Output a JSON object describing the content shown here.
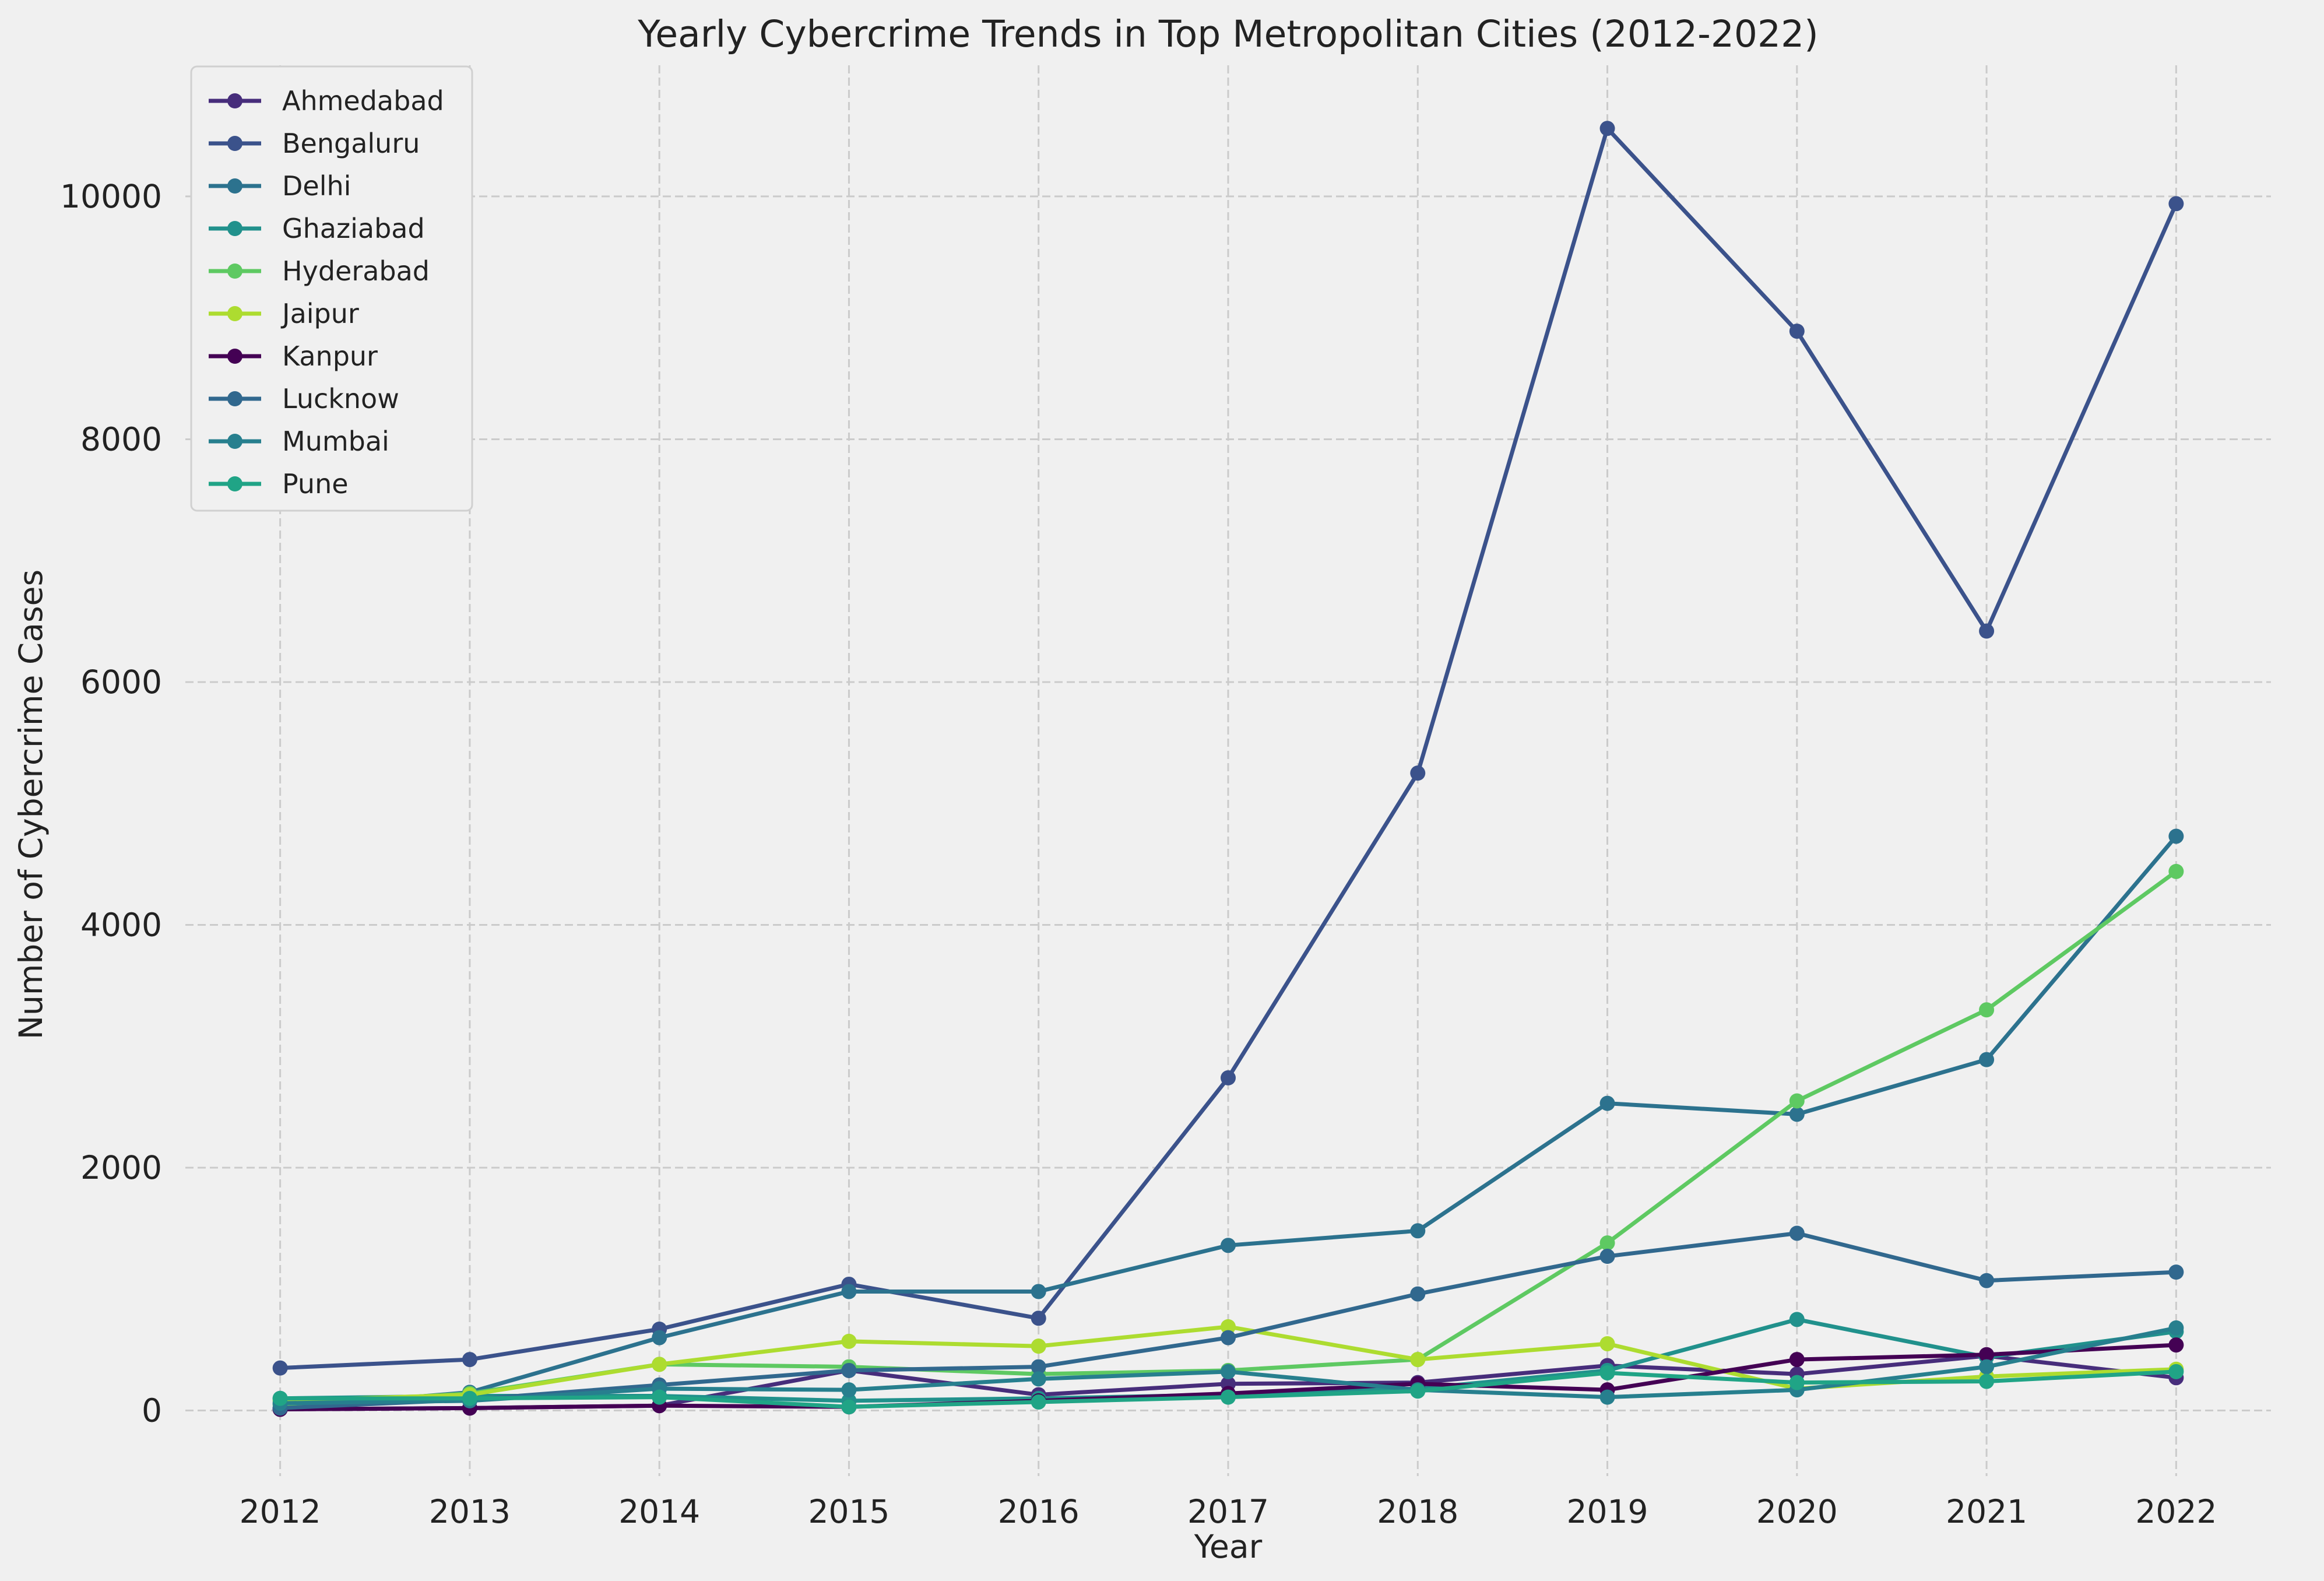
{
  "chart_data": {
    "type": "line",
    "title": "Yearly Cybercrime Trends in Top Metropolitan Cities (2012-2022)",
    "xlabel": "Year",
    "ylabel": "Number of Cybercrime Cases",
    "x": [
      2012,
      2013,
      2014,
      2015,
      2016,
      2017,
      2018,
      2019,
      2020,
      2021,
      2022
    ],
    "xlim": [
      2011.5,
      2022.5
    ],
    "ylim": [
      -540,
      11080
    ],
    "yticks": [
      0,
      2000,
      4000,
      6000,
      8000,
      10000
    ],
    "grid": true,
    "legend_position": "upper-left",
    "series": [
      {
        "name": "Ahmedabad",
        "color": "#472d7b",
        "values": [
          10,
          20,
          40,
          330,
          130,
          220,
          230,
          370,
          300,
          450,
          270
        ]
      },
      {
        "name": "Bengaluru",
        "color": "#3b528b",
        "values": [
          350,
          420,
          670,
          1040,
          760,
          2740,
          5250,
          10560,
          8890,
          6420,
          9940
        ]
      },
      {
        "name": "Delhi",
        "color": "#2c728e",
        "values": [
          20,
          150,
          600,
          980,
          980,
          1360,
          1480,
          2530,
          2440,
          2890,
          4730
        ]
      },
      {
        "name": "Ghaziabad",
        "color": "#21918c",
        "values": [
          100,
          120,
          120,
          80,
          100,
          130,
          180,
          330,
          750,
          440,
          650
        ]
      },
      {
        "name": "Hyderabad",
        "color": "#5ec962",
        "values": [
          50,
          140,
          380,
          360,
          300,
          330,
          420,
          1380,
          2550,
          3300,
          4440
        ]
      },
      {
        "name": "Jaipur",
        "color": "#addc30",
        "values": [
          80,
          130,
          380,
          570,
          530,
          690,
          420,
          550,
          180,
          280,
          340
        ]
      },
      {
        "name": "Kanpur",
        "color": "#440154",
        "values": [
          10,
          20,
          40,
          30,
          80,
          140,
          220,
          170,
          420,
          460,
          540
        ]
      },
      {
        "name": "Lucknow",
        "color": "#31688e",
        "values": [
          20,
          90,
          210,
          330,
          360,
          600,
          960,
          1270,
          1460,
          1070,
          1140
        ]
      },
      {
        "name": "Mumbai",
        "color": "#277f8e",
        "values": [
          60,
          80,
          180,
          170,
          260,
          320,
          170,
          110,
          170,
          360,
          680
        ]
      },
      {
        "name": "Pune",
        "color": "#20a486",
        "values": [
          100,
          100,
          110,
          30,
          70,
          110,
          160,
          310,
          230,
          240,
          320
        ]
      }
    ]
  }
}
